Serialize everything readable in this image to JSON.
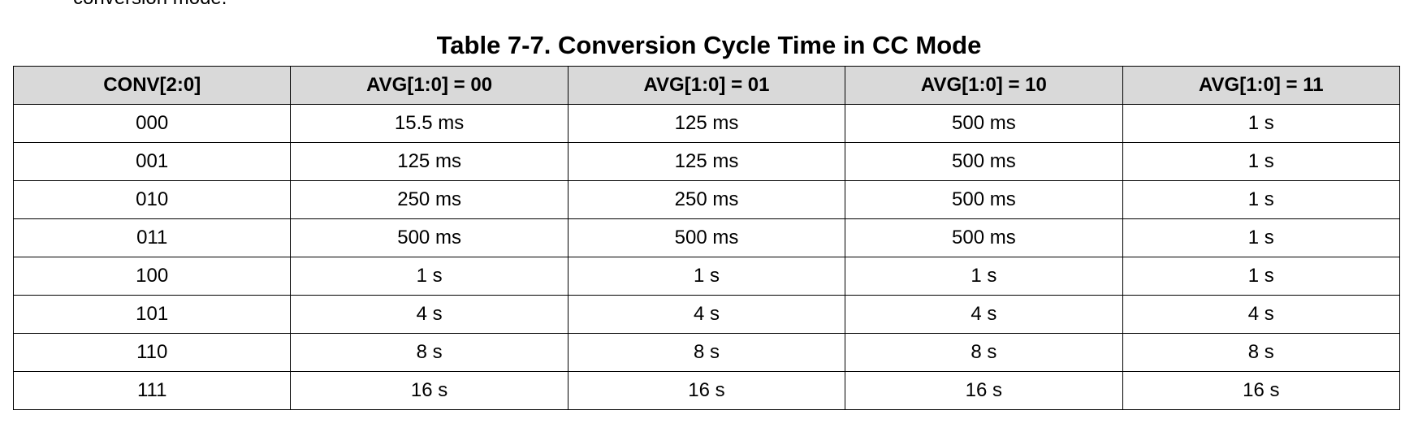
{
  "doc": {
    "cutoff_text": "conversion mode.",
    "table_title": "Table 7-7. Conversion Cycle Time in CC Mode"
  },
  "table": {
    "headers": [
      "CONV[2:0]",
      "AVG[1:0] = 00",
      "AVG[1:0] = 01",
      "AVG[1:0] = 10",
      "AVG[1:0] = 11"
    ],
    "rows": [
      [
        "000",
        "15.5 ms",
        "125 ms",
        "500 ms",
        "1 s"
      ],
      [
        "001",
        "125 ms",
        "125 ms",
        "500 ms",
        "1 s"
      ],
      [
        "010",
        "250 ms",
        "250 ms",
        "500 ms",
        "1 s"
      ],
      [
        "011",
        "500 ms",
        "500 ms",
        "500 ms",
        "1 s"
      ],
      [
        "100",
        "1 s",
        "1 s",
        "1 s",
        "1 s"
      ],
      [
        "101",
        "4 s",
        "4 s",
        "4 s",
        "4 s"
      ],
      [
        "110",
        "8 s",
        "8 s",
        "8 s",
        "8 s"
      ],
      [
        "111",
        "16 s",
        "16 s",
        "16 s",
        "16 s"
      ]
    ]
  }
}
